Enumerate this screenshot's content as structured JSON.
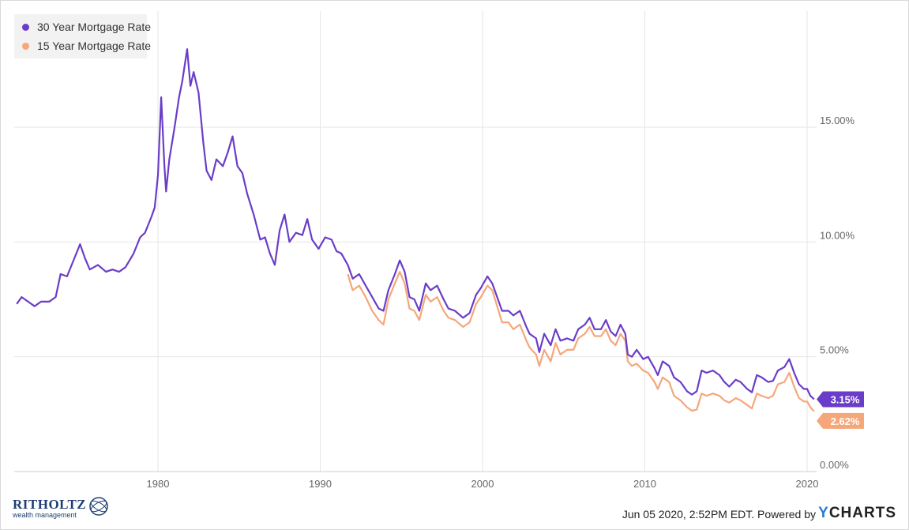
{
  "chart_data": {
    "type": "line",
    "x_unit": "year",
    "xlim": [
      1971.3,
      2020.4
    ],
    "ylim": [
      0,
      20
    ],
    "y_ticks": [
      "0.00%",
      "5.00%",
      "10.00%",
      "15.00%"
    ],
    "y_tick_values": [
      0,
      5,
      10,
      15
    ],
    "x_ticks": [
      "1980",
      "1990",
      "2000",
      "2010",
      "2020"
    ],
    "x_tick_values": [
      1980,
      1990,
      2000,
      2010,
      2020
    ],
    "grid": true,
    "legend_position": "top-left",
    "series": [
      {
        "name": "30 Year Mortgage Rate",
        "color": "#6a3dc8",
        "last_value_label": "3.15%",
        "points": [
          [
            1971.3,
            7.3
          ],
          [
            1971.6,
            7.6
          ],
          [
            1972.0,
            7.4
          ],
          [
            1972.4,
            7.2
          ],
          [
            1972.8,
            7.4
          ],
          [
            1973.3,
            7.4
          ],
          [
            1973.7,
            7.6
          ],
          [
            1974.0,
            8.6
          ],
          [
            1974.4,
            8.5
          ],
          [
            1974.8,
            9.2
          ],
          [
            1975.2,
            9.9
          ],
          [
            1975.5,
            9.3
          ],
          [
            1975.8,
            8.8
          ],
          [
            1976.3,
            9.0
          ],
          [
            1976.8,
            8.7
          ],
          [
            1977.2,
            8.8
          ],
          [
            1977.6,
            8.7
          ],
          [
            1978.0,
            8.9
          ],
          [
            1978.5,
            9.5
          ],
          [
            1978.9,
            10.2
          ],
          [
            1979.2,
            10.4
          ],
          [
            1979.6,
            11.1
          ],
          [
            1979.8,
            11.5
          ],
          [
            1980.0,
            12.9
          ],
          [
            1980.2,
            16.3
          ],
          [
            1980.4,
            13.3
          ],
          [
            1980.5,
            12.2
          ],
          [
            1980.7,
            13.6
          ],
          [
            1981.0,
            14.9
          ],
          [
            1981.3,
            16.3
          ],
          [
            1981.5,
            17.0
          ],
          [
            1981.8,
            18.4
          ],
          [
            1982.0,
            16.8
          ],
          [
            1982.2,
            17.4
          ],
          [
            1982.5,
            16.5
          ],
          [
            1982.8,
            14.3
          ],
          [
            1983.0,
            13.1
          ],
          [
            1983.3,
            12.7
          ],
          [
            1983.6,
            13.6
          ],
          [
            1984.0,
            13.3
          ],
          [
            1984.3,
            13.9
          ],
          [
            1984.6,
            14.6
          ],
          [
            1984.9,
            13.3
          ],
          [
            1985.2,
            13.0
          ],
          [
            1985.5,
            12.1
          ],
          [
            1985.9,
            11.2
          ],
          [
            1986.3,
            10.1
          ],
          [
            1986.6,
            10.2
          ],
          [
            1986.9,
            9.5
          ],
          [
            1987.2,
            9.0
          ],
          [
            1987.5,
            10.5
          ],
          [
            1987.8,
            11.2
          ],
          [
            1988.1,
            10.0
          ],
          [
            1988.5,
            10.4
          ],
          [
            1988.9,
            10.3
          ],
          [
            1989.2,
            11.0
          ],
          [
            1989.5,
            10.1
          ],
          [
            1989.9,
            9.7
          ],
          [
            1990.3,
            10.2
          ],
          [
            1990.7,
            10.1
          ],
          [
            1991.0,
            9.6
          ],
          [
            1991.3,
            9.5
          ],
          [
            1991.7,
            9.0
          ],
          [
            1992.0,
            8.4
          ],
          [
            1992.4,
            8.6
          ],
          [
            1992.8,
            8.1
          ],
          [
            1993.2,
            7.6
          ],
          [
            1993.6,
            7.1
          ],
          [
            1993.9,
            7.0
          ],
          [
            1994.2,
            7.9
          ],
          [
            1994.6,
            8.6
          ],
          [
            1994.9,
            9.2
          ],
          [
            1995.2,
            8.7
          ],
          [
            1995.5,
            7.6
          ],
          [
            1995.8,
            7.5
          ],
          [
            1996.1,
            7.0
          ],
          [
            1996.5,
            8.2
          ],
          [
            1996.8,
            7.9
          ],
          [
            1997.2,
            8.1
          ],
          [
            1997.6,
            7.5
          ],
          [
            1997.9,
            7.1
          ],
          [
            1998.3,
            7.0
          ],
          [
            1998.8,
            6.7
          ],
          [
            1999.2,
            6.9
          ],
          [
            1999.6,
            7.7
          ],
          [
            1999.9,
            8.0
          ],
          [
            2000.3,
            8.5
          ],
          [
            2000.6,
            8.2
          ],
          [
            2000.9,
            7.6
          ],
          [
            2001.2,
            7.0
          ],
          [
            2001.6,
            7.0
          ],
          [
            2001.9,
            6.8
          ],
          [
            2002.3,
            7.0
          ],
          [
            2002.7,
            6.3
          ],
          [
            2002.9,
            6.0
          ],
          [
            2003.3,
            5.8
          ],
          [
            2003.5,
            5.2
          ],
          [
            2003.8,
            6.0
          ],
          [
            2004.2,
            5.5
          ],
          [
            2004.5,
            6.2
          ],
          [
            2004.8,
            5.7
          ],
          [
            2005.2,
            5.8
          ],
          [
            2005.6,
            5.7
          ],
          [
            2005.9,
            6.2
          ],
          [
            2006.3,
            6.4
          ],
          [
            2006.6,
            6.7
          ],
          [
            2006.9,
            6.2
          ],
          [
            2007.3,
            6.2
          ],
          [
            2007.6,
            6.6
          ],
          [
            2007.9,
            6.1
          ],
          [
            2008.2,
            5.9
          ],
          [
            2008.5,
            6.4
          ],
          [
            2008.8,
            6.0
          ],
          [
            2008.95,
            5.1
          ],
          [
            2009.2,
            5.0
          ],
          [
            2009.5,
            5.3
          ],
          [
            2009.9,
            4.9
          ],
          [
            2010.2,
            5.0
          ],
          [
            2010.6,
            4.5
          ],
          [
            2010.8,
            4.2
          ],
          [
            2011.1,
            4.8
          ],
          [
            2011.5,
            4.6
          ],
          [
            2011.8,
            4.1
          ],
          [
            2012.2,
            3.9
          ],
          [
            2012.6,
            3.5
          ],
          [
            2012.9,
            3.35
          ],
          [
            2013.2,
            3.5
          ],
          [
            2013.5,
            4.4
          ],
          [
            2013.8,
            4.3
          ],
          [
            2014.2,
            4.4
          ],
          [
            2014.6,
            4.2
          ],
          [
            2014.9,
            3.9
          ],
          [
            2015.2,
            3.7
          ],
          [
            2015.6,
            4.0
          ],
          [
            2015.9,
            3.9
          ],
          [
            2016.3,
            3.6
          ],
          [
            2016.6,
            3.45
          ],
          [
            2016.9,
            4.2
          ],
          [
            2017.2,
            4.1
          ],
          [
            2017.6,
            3.9
          ],
          [
            2017.9,
            3.95
          ],
          [
            2018.2,
            4.4
          ],
          [
            2018.6,
            4.55
          ],
          [
            2018.9,
            4.9
          ],
          [
            2019.2,
            4.3
          ],
          [
            2019.5,
            3.8
          ],
          [
            2019.8,
            3.6
          ],
          [
            2020.0,
            3.6
          ],
          [
            2020.2,
            3.3
          ],
          [
            2020.43,
            3.15
          ]
        ]
      },
      {
        "name": "15 Year Mortgage Rate",
        "color": "#f5a77a",
        "last_value_label": "2.62%",
        "points": [
          [
            1991.7,
            8.6
          ],
          [
            1992.0,
            7.9
          ],
          [
            1992.4,
            8.1
          ],
          [
            1992.8,
            7.6
          ],
          [
            1993.2,
            7.0
          ],
          [
            1993.6,
            6.6
          ],
          [
            1993.9,
            6.4
          ],
          [
            1994.2,
            7.5
          ],
          [
            1994.6,
            8.2
          ],
          [
            1994.9,
            8.7
          ],
          [
            1995.2,
            8.2
          ],
          [
            1995.5,
            7.1
          ],
          [
            1995.8,
            7.0
          ],
          [
            1996.1,
            6.6
          ],
          [
            1996.5,
            7.7
          ],
          [
            1996.8,
            7.4
          ],
          [
            1997.2,
            7.6
          ],
          [
            1997.6,
            7.0
          ],
          [
            1997.9,
            6.7
          ],
          [
            1998.3,
            6.6
          ],
          [
            1998.8,
            6.3
          ],
          [
            1999.2,
            6.5
          ],
          [
            1999.6,
            7.3
          ],
          [
            1999.9,
            7.6
          ],
          [
            2000.3,
            8.1
          ],
          [
            2000.6,
            7.9
          ],
          [
            2000.9,
            7.2
          ],
          [
            2001.2,
            6.5
          ],
          [
            2001.6,
            6.5
          ],
          [
            2001.9,
            6.2
          ],
          [
            2002.3,
            6.4
          ],
          [
            2002.7,
            5.7
          ],
          [
            2002.9,
            5.4
          ],
          [
            2003.3,
            5.1
          ],
          [
            2003.5,
            4.6
          ],
          [
            2003.8,
            5.3
          ],
          [
            2004.2,
            4.8
          ],
          [
            2004.5,
            5.6
          ],
          [
            2004.8,
            5.1
          ],
          [
            2005.2,
            5.3
          ],
          [
            2005.6,
            5.3
          ],
          [
            2005.9,
            5.8
          ],
          [
            2006.3,
            6.0
          ],
          [
            2006.6,
            6.3
          ],
          [
            2006.9,
            5.9
          ],
          [
            2007.3,
            5.9
          ],
          [
            2007.6,
            6.2
          ],
          [
            2007.9,
            5.7
          ],
          [
            2008.2,
            5.5
          ],
          [
            2008.5,
            6.0
          ],
          [
            2008.8,
            5.7
          ],
          [
            2008.95,
            4.8
          ],
          [
            2009.2,
            4.6
          ],
          [
            2009.5,
            4.7
          ],
          [
            2009.9,
            4.4
          ],
          [
            2010.2,
            4.3
          ],
          [
            2010.6,
            3.9
          ],
          [
            2010.8,
            3.6
          ],
          [
            2011.1,
            4.1
          ],
          [
            2011.5,
            3.9
          ],
          [
            2011.8,
            3.3
          ],
          [
            2012.2,
            3.1
          ],
          [
            2012.6,
            2.8
          ],
          [
            2012.9,
            2.65
          ],
          [
            2013.2,
            2.7
          ],
          [
            2013.5,
            3.4
          ],
          [
            2013.8,
            3.3
          ],
          [
            2014.2,
            3.4
          ],
          [
            2014.6,
            3.3
          ],
          [
            2014.9,
            3.1
          ],
          [
            2015.2,
            3.0
          ],
          [
            2015.6,
            3.2
          ],
          [
            2015.9,
            3.1
          ],
          [
            2016.3,
            2.9
          ],
          [
            2016.6,
            2.75
          ],
          [
            2016.9,
            3.4
          ],
          [
            2017.2,
            3.3
          ],
          [
            2017.6,
            3.2
          ],
          [
            2017.9,
            3.3
          ],
          [
            2018.2,
            3.8
          ],
          [
            2018.6,
            3.9
          ],
          [
            2018.9,
            4.3
          ],
          [
            2019.2,
            3.7
          ],
          [
            2019.5,
            3.2
          ],
          [
            2019.8,
            3.05
          ],
          [
            2020.0,
            3.05
          ],
          [
            2020.2,
            2.8
          ],
          [
            2020.43,
            2.62
          ]
        ]
      }
    ]
  },
  "footer": {
    "timestamp": "Jun 05 2020, 2:52PM EDT. Powered by",
    "brand_y": "Y",
    "brand_rest": "CHARTS"
  },
  "logo": {
    "name": "RITHOLTZ",
    "subtitle": "wealth management"
  },
  "colors": {
    "grid": "#e6e6e6",
    "axis_text": "#666666"
  }
}
